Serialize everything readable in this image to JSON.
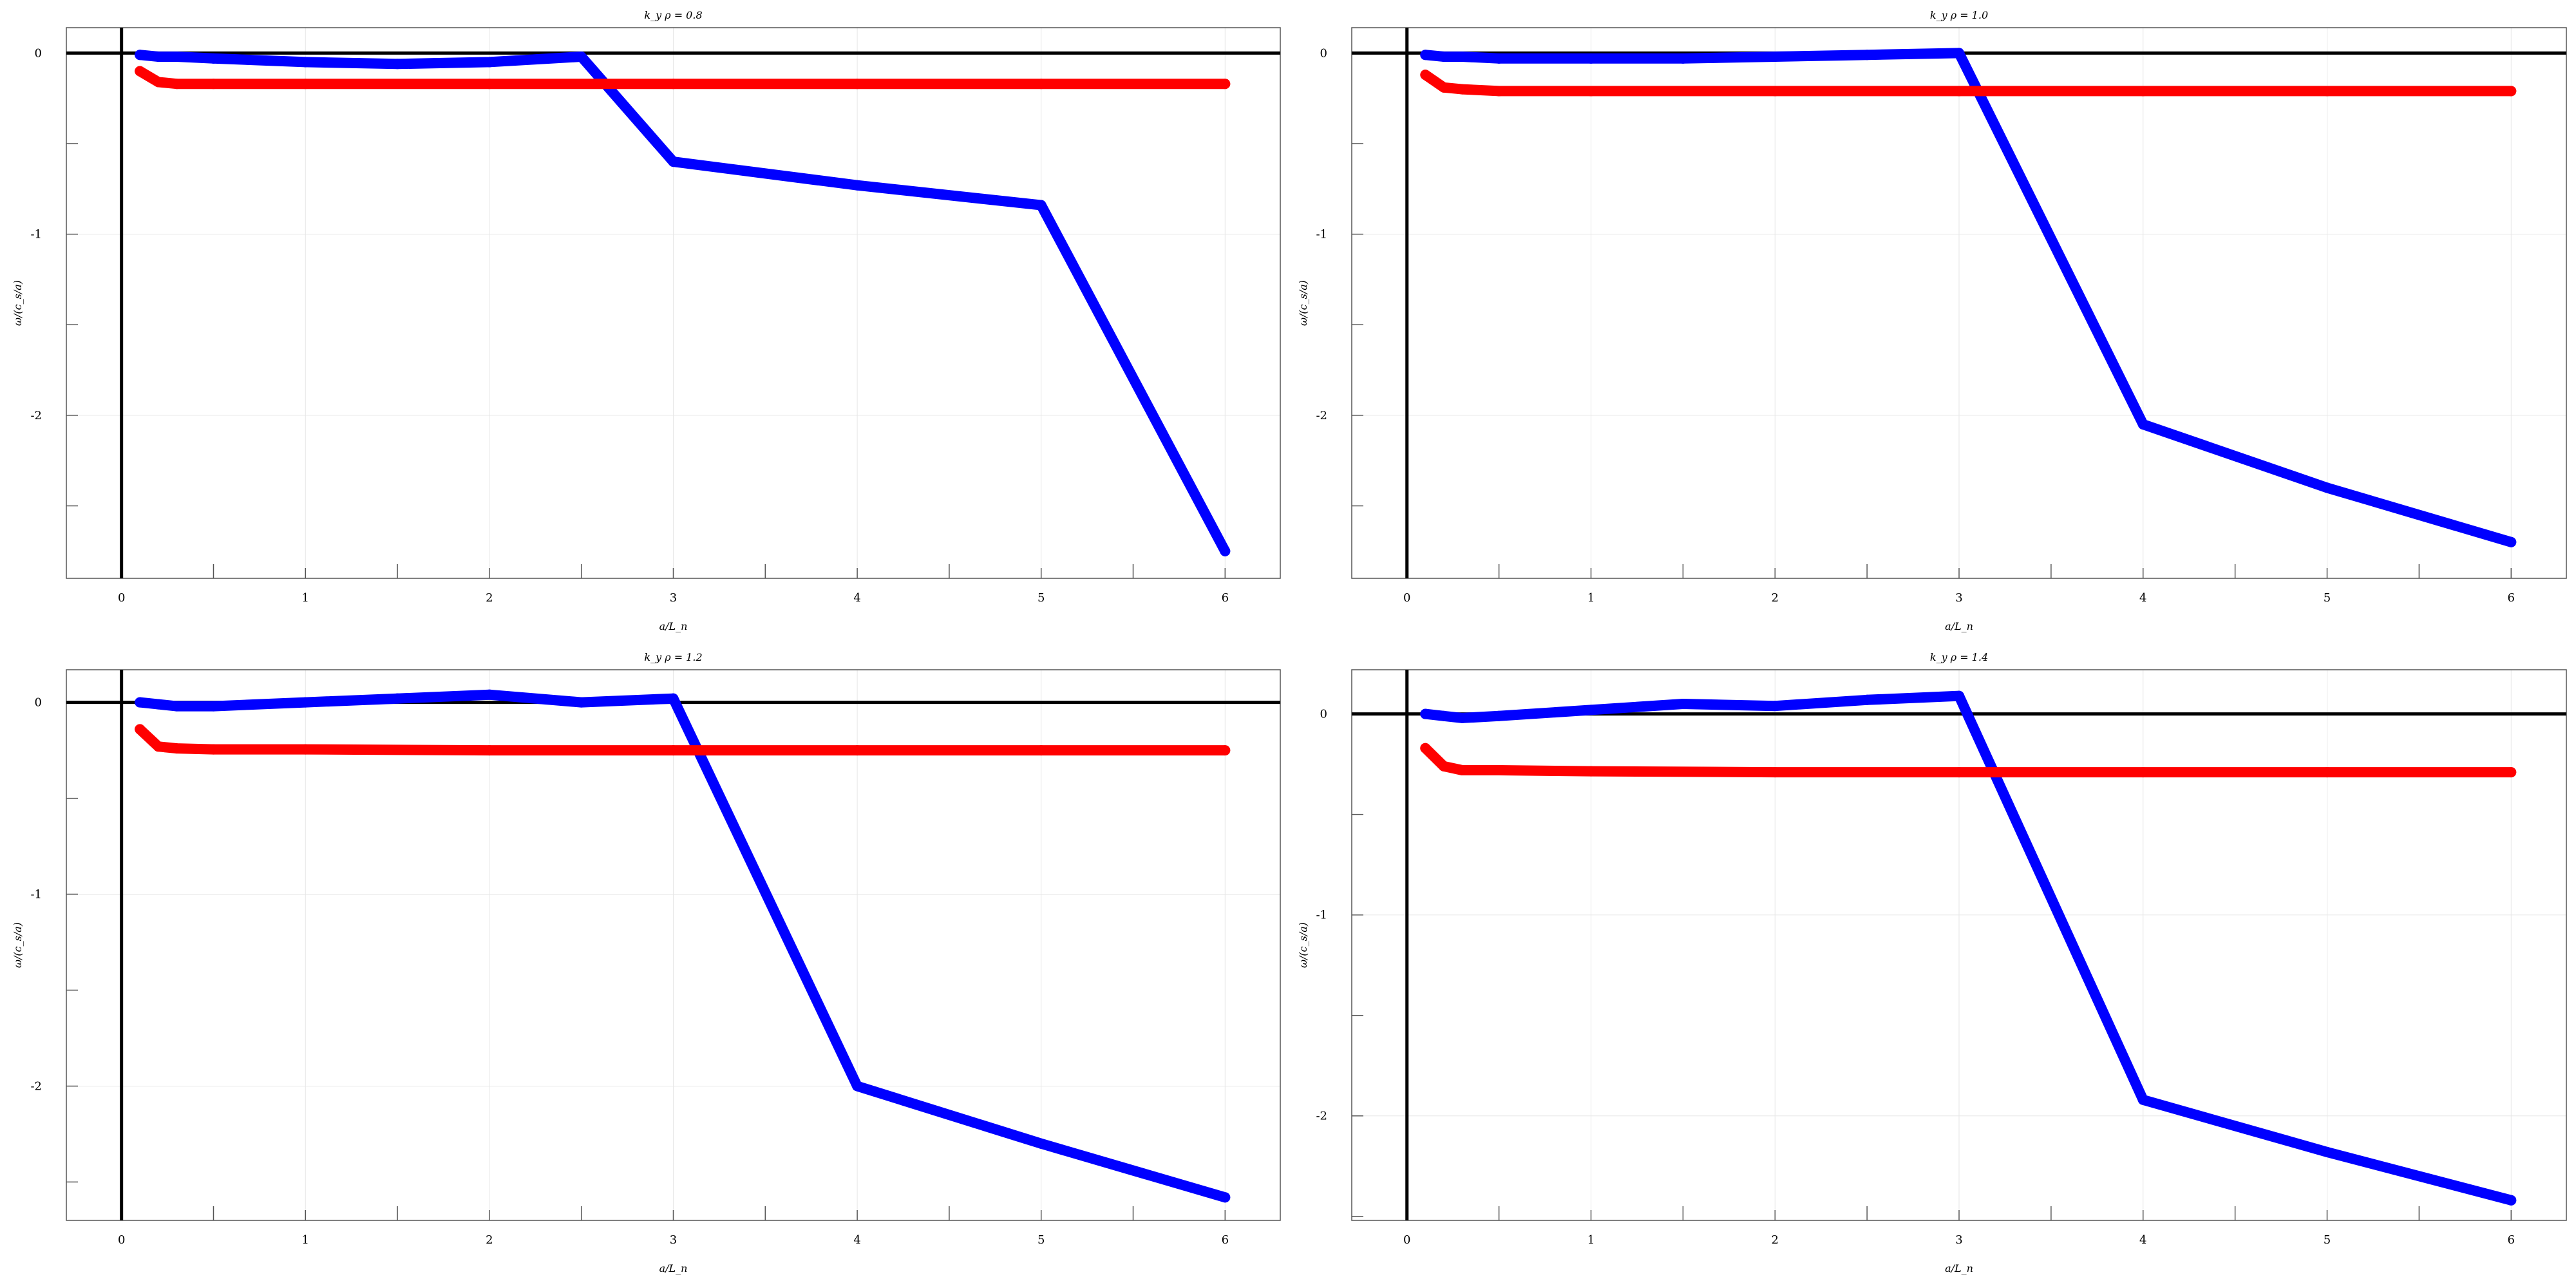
{
  "figure": {
    "panels": 4,
    "layout": "2x2"
  },
  "chart_data": [
    {
      "type": "line",
      "title": "k_y ρ = 0.8",
      "xlabel": "a/L_n",
      "ylabel": "ω/(c_s/a)",
      "xlim": [
        -0.3,
        6.3
      ],
      "ylim": [
        -2.9,
        0.14
      ],
      "xticks": [
        0,
        1,
        2,
        3,
        4,
        5,
        6
      ],
      "xtick_labels": [
        "0",
        "1",
        "2",
        "3",
        "4",
        "5",
        "6"
      ],
      "yticks": [
        0,
        -0.5,
        -1,
        -1.5,
        -2,
        -2.5
      ],
      "ytick_labels": [
        "0",
        "",
        "-1",
        "",
        "-2",
        ""
      ],
      "grid": true,
      "colors": {
        "series_blue": "#0000ff",
        "series_red": "#ff0000",
        "zero_lines": "#000000",
        "grid": "#e6e6e6"
      },
      "series": [
        {
          "color": "#0000ff",
          "x": [
            0.1,
            0.2,
            0.3,
            0.5,
            1.0,
            1.5,
            2.0,
            2.5,
            3.0,
            4.0,
            5.0,
            6.0
          ],
          "values": [
            -0.01,
            -0.02,
            -0.02,
            -0.03,
            -0.05,
            -0.06,
            -0.05,
            -0.02,
            -0.6,
            -0.73,
            -0.84,
            -2.75
          ]
        },
        {
          "color": "#ff0000",
          "x": [
            0.1,
            0.2,
            0.3,
            0.5,
            1.0,
            2.0,
            3.0,
            4.0,
            5.0,
            6.0
          ],
          "values": [
            -0.1,
            -0.16,
            -0.17,
            -0.17,
            -0.17,
            -0.17,
            -0.17,
            -0.17,
            -0.17,
            -0.17
          ]
        }
      ]
    },
    {
      "type": "line",
      "title": "k_y ρ = 1.0",
      "xlabel": "a/L_n",
      "ylabel": "ω/(c_s/a)",
      "xlim": [
        -0.3,
        6.3
      ],
      "ylim": [
        -2.9,
        0.14
      ],
      "xticks": [
        0,
        1,
        2,
        3,
        4,
        5,
        6
      ],
      "xtick_labels": [
        "0",
        "1",
        "2",
        "3",
        "4",
        "5",
        "6"
      ],
      "yticks": [
        0,
        -0.5,
        -1,
        -1.5,
        -2,
        -2.5
      ],
      "ytick_labels": [
        "0",
        "",
        "-1",
        "",
        "-2",
        ""
      ],
      "grid": true,
      "colors": {
        "series_blue": "#0000ff",
        "series_red": "#ff0000",
        "zero_lines": "#000000",
        "grid": "#e6e6e6"
      },
      "series": [
        {
          "color": "#0000ff",
          "x": [
            0.1,
            0.2,
            0.3,
            0.5,
            1.0,
            1.5,
            2.0,
            2.5,
            3.0,
            4.0,
            5.0,
            6.0
          ],
          "values": [
            -0.01,
            -0.02,
            -0.02,
            -0.03,
            -0.03,
            -0.03,
            -0.02,
            -0.01,
            0.0,
            -2.05,
            -2.4,
            -2.7
          ]
        },
        {
          "color": "#ff0000",
          "x": [
            0.1,
            0.2,
            0.3,
            0.5,
            1.0,
            2.0,
            3.0,
            4.0,
            5.0,
            6.0
          ],
          "values": [
            -0.12,
            -0.19,
            -0.2,
            -0.21,
            -0.21,
            -0.21,
            -0.21,
            -0.21,
            -0.21,
            -0.21
          ]
        }
      ]
    },
    {
      "type": "line",
      "title": "k_y ρ = 1.2",
      "xlabel": "a/L_n",
      "ylabel": "ω/(c_s/a)",
      "xlim": [
        -0.3,
        6.3
      ],
      "ylim": [
        -2.7,
        0.17
      ],
      "xticks": [
        0,
        1,
        2,
        3,
        4,
        5,
        6
      ],
      "xtick_labels": [
        "0",
        "1",
        "2",
        "3",
        "4",
        "5",
        "6"
      ],
      "yticks": [
        0,
        -0.5,
        -1,
        -1.5,
        -2,
        -2.5
      ],
      "ytick_labels": [
        "0",
        "",
        "-1",
        "",
        "-2",
        ""
      ],
      "grid": true,
      "colors": {
        "series_blue": "#0000ff",
        "series_red": "#ff0000",
        "zero_lines": "#000000",
        "grid": "#e6e6e6"
      },
      "series": [
        {
          "color": "#0000ff",
          "x": [
            0.1,
            0.2,
            0.3,
            0.5,
            1.0,
            1.5,
            2.0,
            2.5,
            3.0,
            4.0,
            5.0,
            6.0
          ],
          "values": [
            0.0,
            -0.01,
            -0.02,
            -0.02,
            0.0,
            0.02,
            0.04,
            0.0,
            0.02,
            -2.0,
            -2.3,
            -2.58
          ]
        },
        {
          "color": "#ff0000",
          "x": [
            0.1,
            0.2,
            0.3,
            0.5,
            1.0,
            2.0,
            3.0,
            4.0,
            5.0,
            6.0
          ],
          "values": [
            -0.14,
            -0.23,
            -0.24,
            -0.245,
            -0.245,
            -0.25,
            -0.25,
            -0.25,
            -0.25,
            -0.25
          ]
        }
      ]
    },
    {
      "type": "line",
      "title": "k_y ρ = 1.4",
      "xlabel": "a/L_n",
      "ylabel": "ω/(c_s/a)",
      "xlim": [
        -0.3,
        6.3
      ],
      "ylim": [
        -2.52,
        0.22
      ],
      "xticks": [
        0,
        1,
        2,
        3,
        4,
        5,
        6
      ],
      "xtick_labels": [
        "0",
        "1",
        "2",
        "3",
        "4",
        "5",
        "6"
      ],
      "yticks": [
        0,
        -0.5,
        -1,
        -1.5,
        -2,
        -2.5
      ],
      "ytick_labels": [
        "0",
        "",
        "-1",
        "",
        "-2",
        ""
      ],
      "grid": true,
      "colors": {
        "series_blue": "#0000ff",
        "series_red": "#ff0000",
        "zero_lines": "#000000",
        "grid": "#e6e6e6"
      },
      "series": [
        {
          "color": "#0000ff",
          "x": [
            0.1,
            0.2,
            0.3,
            0.5,
            1.0,
            1.5,
            2.0,
            2.5,
            3.0,
            4.0,
            5.0,
            6.0
          ],
          "values": [
            0.0,
            -0.01,
            -0.02,
            -0.01,
            0.02,
            0.05,
            0.04,
            0.07,
            0.09,
            -1.92,
            -2.18,
            -2.42
          ]
        },
        {
          "color": "#ff0000",
          "x": [
            0.1,
            0.2,
            0.3,
            0.5,
            1.0,
            2.0,
            3.0,
            4.0,
            5.0,
            6.0
          ],
          "values": [
            -0.17,
            -0.26,
            -0.28,
            -0.28,
            -0.285,
            -0.29,
            -0.29,
            -0.29,
            -0.29,
            -0.29
          ]
        }
      ]
    }
  ]
}
